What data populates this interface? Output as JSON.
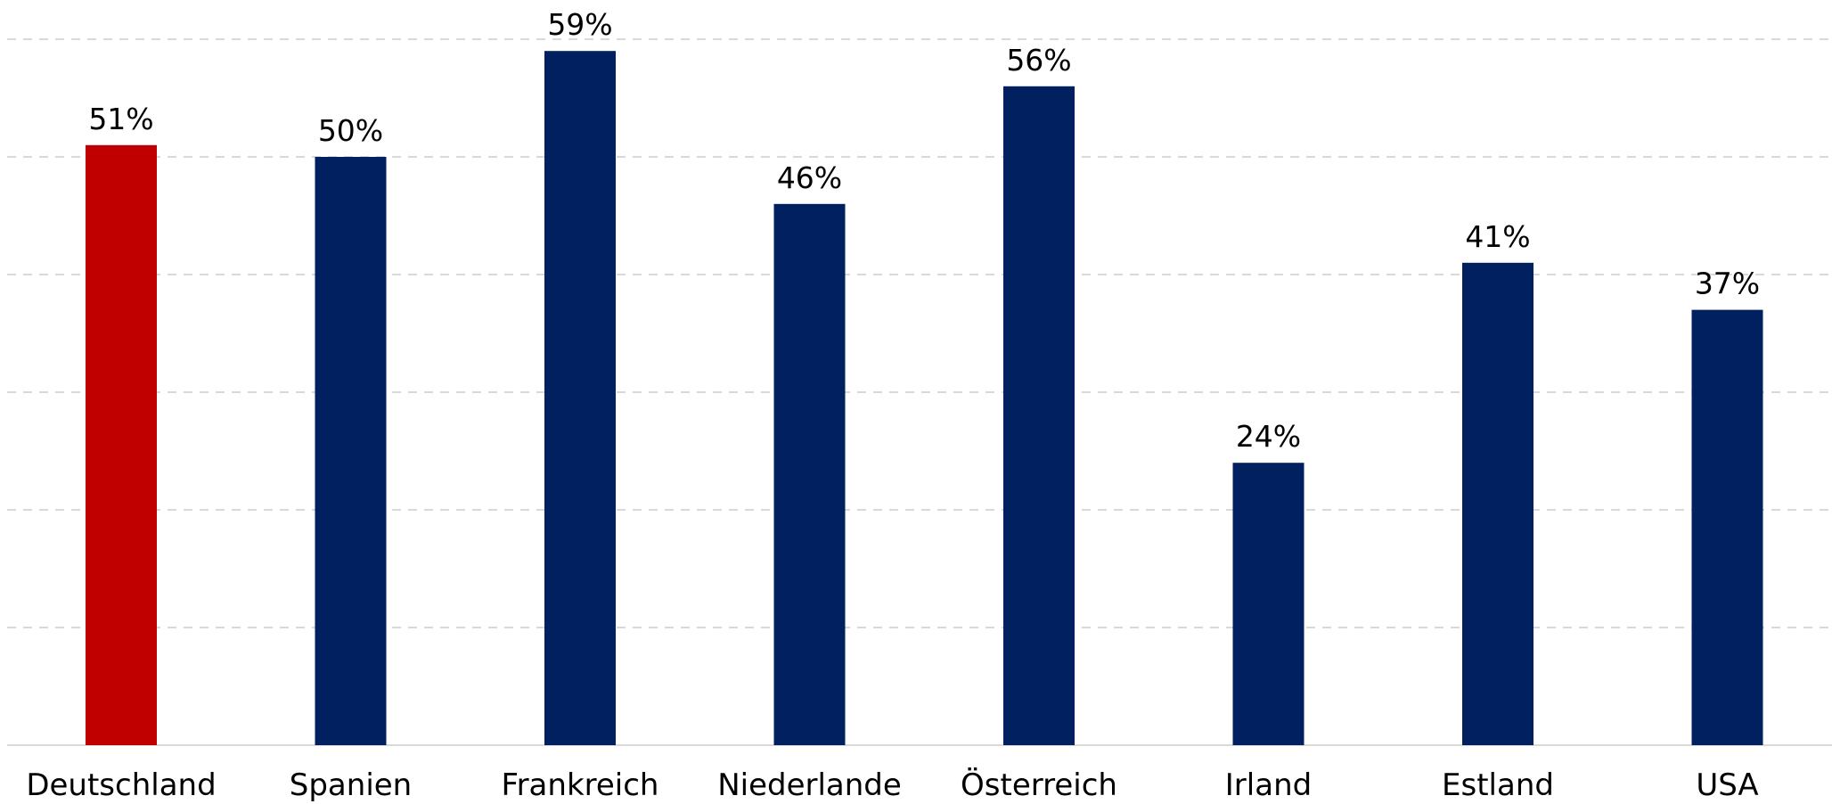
{
  "chart_data": {
    "type": "bar",
    "categories": [
      "Deutschland",
      "Spanien",
      "Frankreich",
      "Niederlande",
      "Österreich",
      "Irland",
      "Estland",
      "USA"
    ],
    "values": [
      51,
      50,
      59,
      46,
      56,
      24,
      41,
      37
    ],
    "value_labels": [
      "51%",
      "50%",
      "59%",
      "46%",
      "56%",
      "24%",
      "41%",
      "37%"
    ],
    "bar_colors": [
      "#c00000",
      "#002060",
      "#002060",
      "#002060",
      "#002060",
      "#002060",
      "#002060",
      "#002060"
    ],
    "title": "",
    "xlabel": "",
    "ylabel": "",
    "ylim": [
      0,
      60
    ],
    "grid": true,
    "grid_style": "dashed",
    "grid_step": 10,
    "legend": "none",
    "y_tick_labels_visible": false
  }
}
